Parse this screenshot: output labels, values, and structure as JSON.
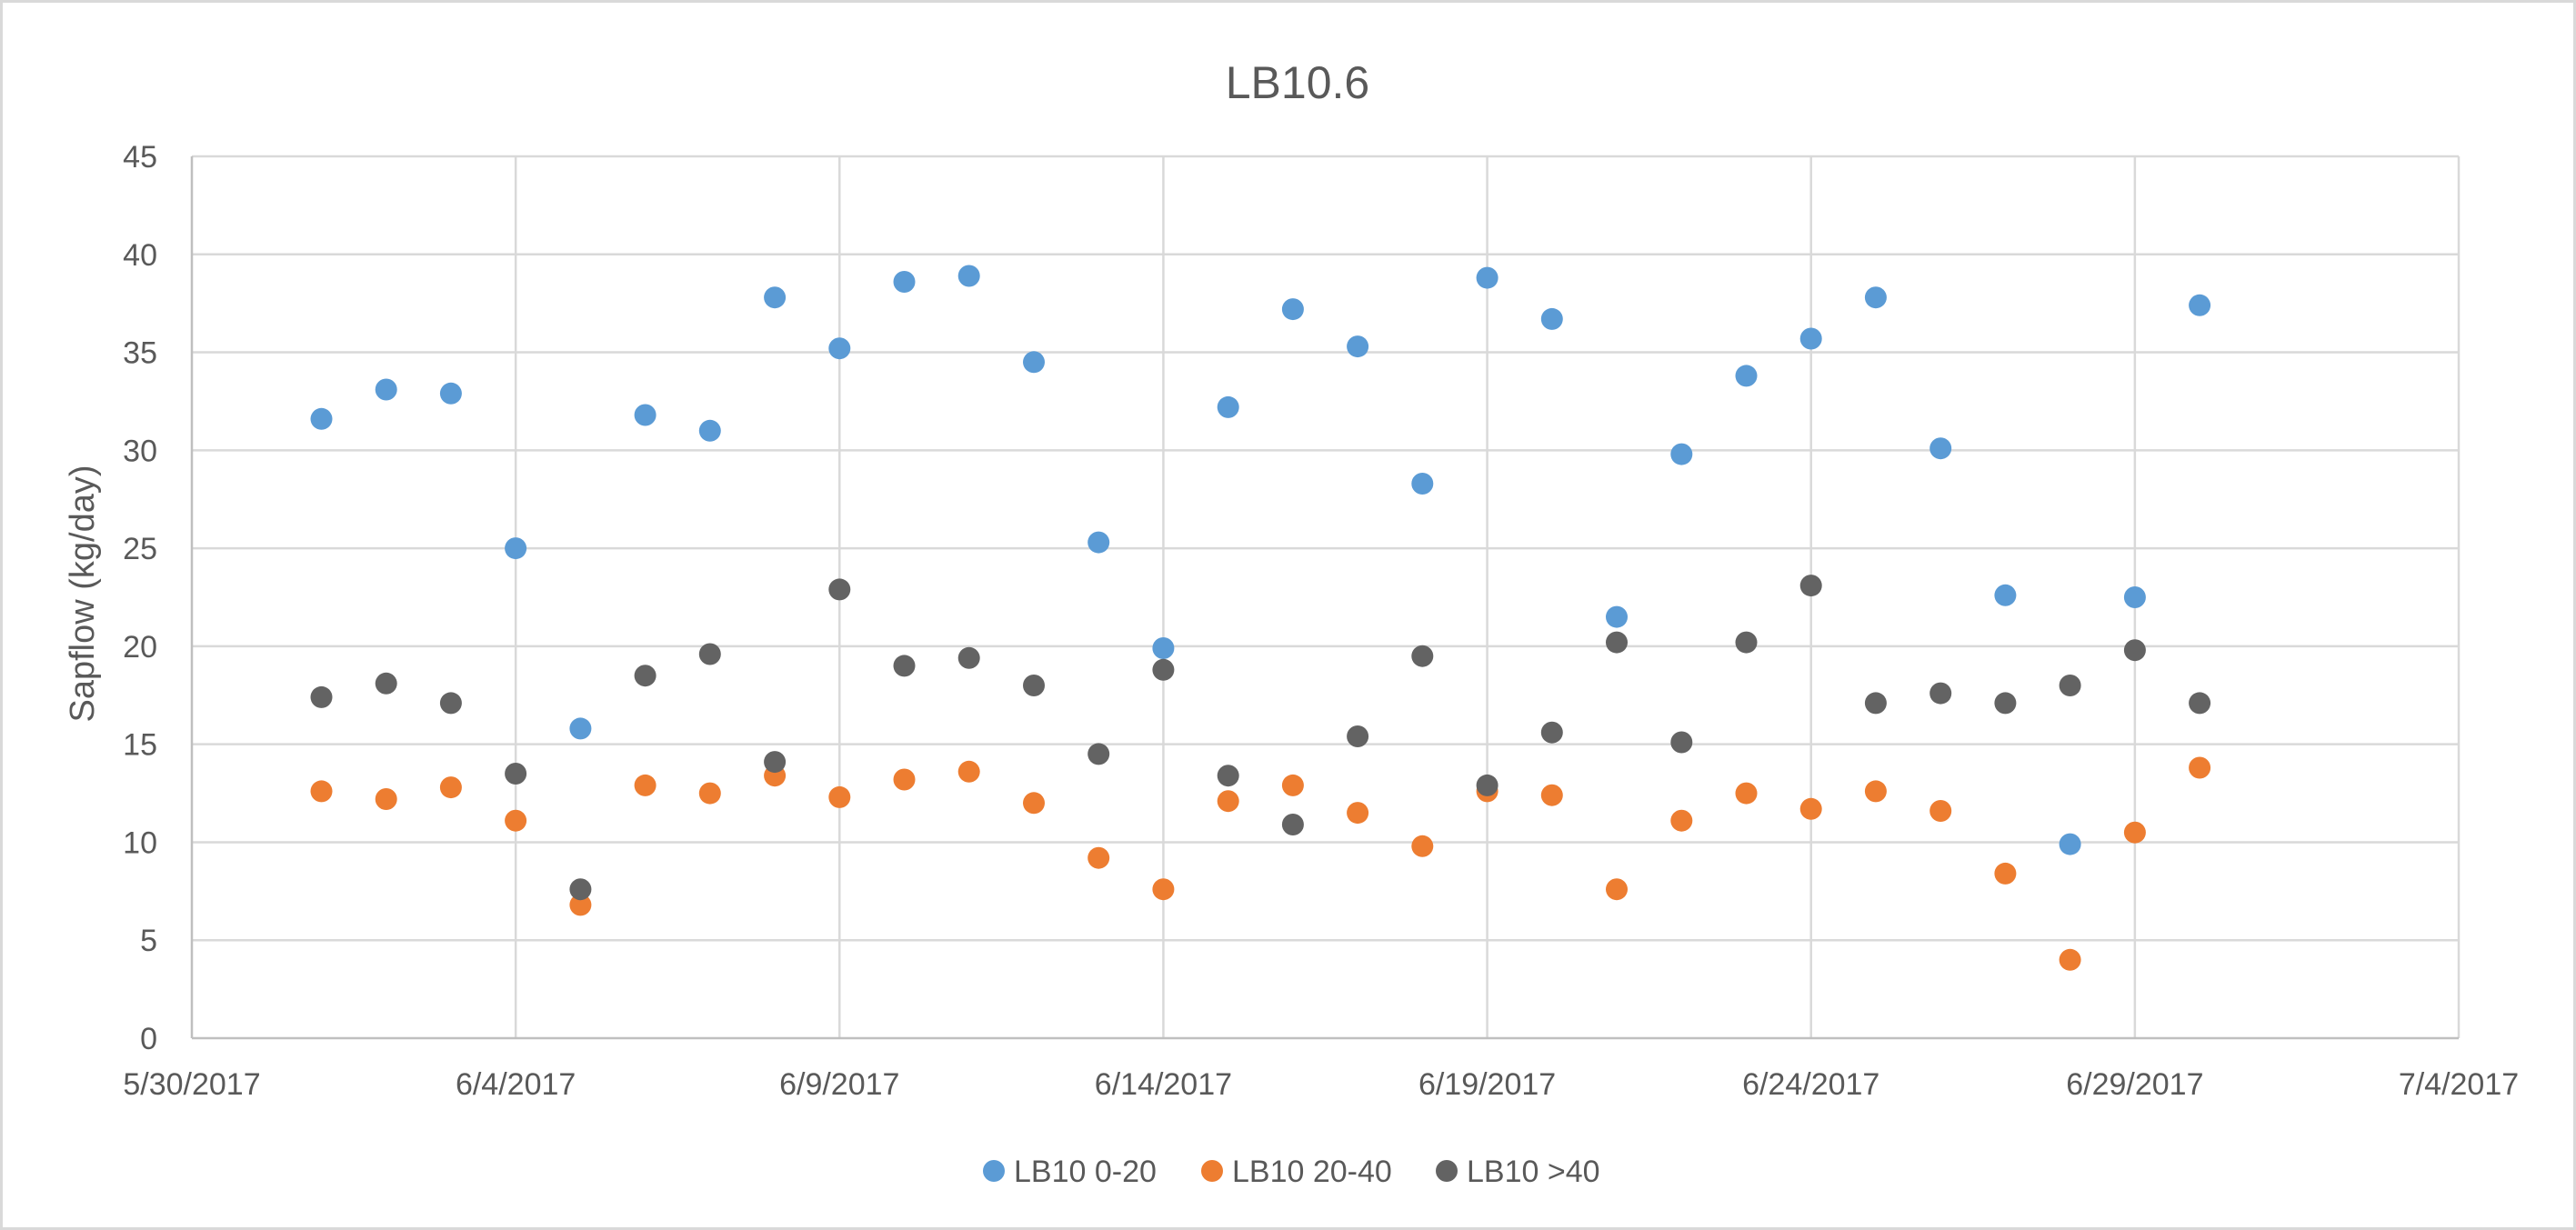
{
  "chart_data": {
    "type": "scatter",
    "title": "LB10.6",
    "xlabel": "",
    "ylabel": "Sapflow (kg/day)",
    "x_axis": {
      "min": "2017-05-30",
      "max": "2017-07-04",
      "major_unit_days": 5,
      "tick_labels": [
        "5/30/2017",
        "6/4/2017",
        "6/9/2017",
        "6/14/2017",
        "6/19/2017",
        "6/24/2017",
        "6/29/2017",
        "7/4/2017"
      ]
    },
    "y_axis": {
      "min": 0,
      "max": 45,
      "major_unit": 5,
      "tick_labels": [
        "0",
        "5",
        "10",
        "15",
        "20",
        "25",
        "30",
        "35",
        "40",
        "45"
      ]
    },
    "grid": true,
    "legend_position": "bottom",
    "x": [
      "2017-06-01",
      "2017-06-02",
      "2017-06-03",
      "2017-06-04",
      "2017-06-05",
      "2017-06-06",
      "2017-06-07",
      "2017-06-08",
      "2017-06-09",
      "2017-06-10",
      "2017-06-11",
      "2017-06-12",
      "2017-06-13",
      "2017-06-14",
      "2017-06-15",
      "2017-06-16",
      "2017-06-17",
      "2017-06-18",
      "2017-06-19",
      "2017-06-20",
      "2017-06-21",
      "2017-06-22",
      "2017-06-23",
      "2017-06-24",
      "2017-06-25",
      "2017-06-26",
      "2017-06-27",
      "2017-06-28",
      "2017-06-29",
      "2017-06-30"
    ],
    "series": [
      {
        "name": "LB10 0-20",
        "color": "#5b9bd5",
        "values": [
          31.6,
          33.1,
          32.9,
          25.0,
          15.8,
          31.8,
          31.0,
          37.8,
          35.2,
          38.6,
          38.9,
          34.5,
          25.3,
          19.9,
          32.2,
          37.2,
          35.3,
          28.3,
          38.8,
          36.7,
          21.5,
          29.8,
          33.8,
          35.7,
          37.8,
          30.1,
          22.6,
          9.9,
          22.5,
          37.4
        ]
      },
      {
        "name": "LB10 20-40",
        "color": "#ed7d31",
        "values": [
          12.6,
          12.2,
          12.8,
          11.1,
          6.8,
          12.9,
          12.5,
          13.4,
          12.3,
          13.2,
          13.6,
          12.0,
          9.2,
          7.6,
          12.1,
          12.9,
          11.5,
          9.8,
          12.6,
          12.4,
          7.6,
          11.1,
          12.5,
          11.7,
          12.6,
          11.6,
          8.4,
          4.0,
          10.5,
          13.8
        ]
      },
      {
        "name": "LB10 >40",
        "color": "#636363",
        "values": [
          17.4,
          18.1,
          17.1,
          13.5,
          7.6,
          18.5,
          19.6,
          14.1,
          22.9,
          19.0,
          19.4,
          18.0,
          14.5,
          18.8,
          13.4,
          10.9,
          15.4,
          19.5,
          12.9,
          15.6,
          20.2,
          15.1,
          20.2,
          23.1,
          17.1,
          17.6,
          17.1,
          18.0,
          19.8,
          17.1
        ]
      }
    ]
  }
}
